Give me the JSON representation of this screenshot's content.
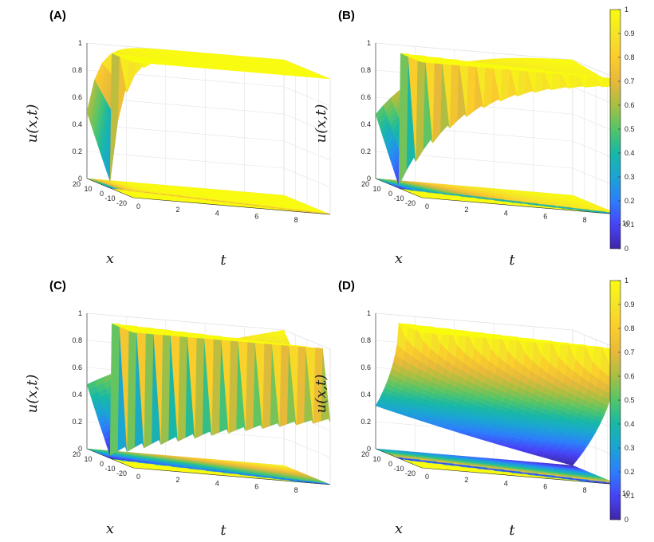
{
  "chart_data": [
    {
      "type": "surface",
      "panel": "(A)",
      "title": "",
      "xlabel": "t",
      "ylabel": "x",
      "zlabel": "u(x,t)",
      "t_ticks": [
        "0",
        "2",
        "4",
        "6",
        "8"
      ],
      "t_end_tick": "",
      "x_ticks": [
        "20",
        "10",
        "0",
        "-10",
        "-20"
      ],
      "z_ticks": [
        "0",
        "0.2",
        "0.4",
        "0.6",
        "0.8",
        "1"
      ],
      "xlim": [
        0,
        10
      ],
      "ylim": [
        -20,
        20
      ],
      "zlim": [
        0,
        1
      ],
      "cusp_depth": 0.05,
      "recovery_rate": 1.6,
      "shadow_right_value": 0.7
    },
    {
      "type": "surface",
      "panel": "(B)",
      "title": "",
      "xlabel": "t",
      "ylabel": "x",
      "zlabel": "u(x,t)",
      "t_ticks": [
        "0",
        "2",
        "4",
        "6",
        "8"
      ],
      "t_end_tick": "10",
      "x_ticks": [
        "20",
        "10",
        "0",
        "-10",
        "-20"
      ],
      "z_ticks": [
        "0",
        "0.2",
        "0.4",
        "0.6",
        "0.8",
        "1"
      ],
      "xlim": [
        0,
        10
      ],
      "ylim": [
        -20,
        20
      ],
      "zlim": [
        0,
        1
      ],
      "cusp_depth": 0.02,
      "recovery_rate": 0.28,
      "shadow_right_value": 0.28
    },
    {
      "type": "surface",
      "panel": "(C)",
      "title": "",
      "xlabel": "t",
      "ylabel": "x",
      "zlabel": "u(x,t)",
      "t_ticks": [
        "0",
        "2",
        "4",
        "6",
        "8"
      ],
      "t_end_tick": "",
      "x_ticks": [
        "20",
        "10",
        "0",
        "-10",
        "-20"
      ],
      "z_ticks": [
        "0",
        "0.2",
        "0.4",
        "0.6",
        "0.8",
        "1"
      ],
      "xlim": [
        0,
        10
      ],
      "ylim": [
        -20,
        20
      ],
      "zlim": [
        0,
        1
      ],
      "cusp_depth": 0.02,
      "recovery_rate": 0.06,
      "shadow_right_value": 0.12
    },
    {
      "type": "surface",
      "panel": "(D)",
      "title": "",
      "xlabel": "t",
      "ylabel": "x",
      "zlabel": "u(x,t)",
      "t_ticks": [
        "0",
        "2",
        "4",
        "6",
        "8"
      ],
      "t_end_tick": "10",
      "x_ticks": [
        "20",
        "10",
        "0",
        "-10",
        "-20"
      ],
      "z_ticks": [
        "0",
        "0.2",
        "0.4",
        "0.6",
        "0.8",
        "1"
      ],
      "xlim": [
        0,
        10
      ],
      "ylim": [
        -20,
        20
      ],
      "zlim": [
        0,
        1
      ],
      "cusp_depth": 0.0,
      "recovery_rate": 0.0,
      "shadow_right_value": 0.02
    }
  ],
  "colorbars": [
    {
      "ticks": [
        "0",
        "0.1",
        "0.2",
        "0.3",
        "0.4",
        "0.5",
        "0.6",
        "0.7",
        "0.8",
        "0.9",
        "1"
      ]
    },
    {
      "ticks": [
        "0",
        "0.1",
        "0.2",
        "0.3",
        "0.4",
        "0.5",
        "0.6",
        "0.7",
        "0.8",
        "0.9",
        "1"
      ]
    }
  ],
  "colormap": "parula",
  "colormap_stops": [
    "#3e26a8",
    "#4743f8",
    "#2c7efb",
    "#1aa4d5",
    "#18b8a6",
    "#53c569",
    "#a7bf43",
    "#e7b93a",
    "#fbcc2b",
    "#f5e427",
    "#f9fb0e"
  ],
  "grid": "on"
}
